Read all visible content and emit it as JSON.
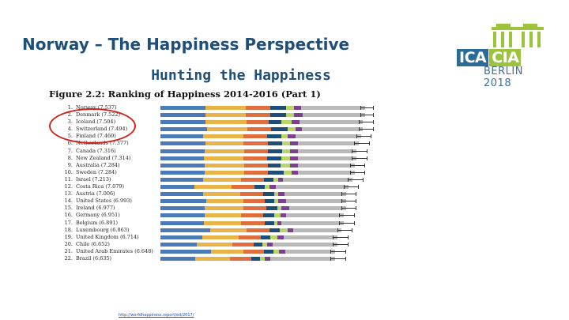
{
  "slide": {
    "title": "Norway – The Happiness Perspective",
    "subtitle": "Hunting the Happiness"
  },
  "logo": {
    "part_a": "ICA",
    "part_b": "CIA",
    "tagline": "BERLIN 2018",
    "colors": {
      "blue": "#2b6b98",
      "green": "#9bc33b"
    }
  },
  "figure": {
    "title": "Figure 2.2: Ranking of Happiness 2014-2016 (Part 1)",
    "segment_colors": [
      "#4a7ab8",
      "#e8b347",
      "#df6d3d",
      "#1e4d7a",
      "#b8d56a",
      "#7d3f8f",
      "#b9b9b9"
    ],
    "rows": [
      {
        "rank": "1.",
        "label": "Norway (7.537)",
        "segments": [
          0.28,
          0.25,
          0.15,
          0.1,
          0.05,
          0.04,
          0.4
        ],
        "ci": [
          0.96,
          1.0
        ]
      },
      {
        "rank": "2.",
        "label": "Denmark (7.522)",
        "segments": [
          0.28,
          0.25,
          0.15,
          0.1,
          0.05,
          0.05,
          0.39
        ],
        "ci": [
          0.96,
          1.0
        ]
      },
      {
        "rank": "3.",
        "label": "Iceland (7.504)",
        "segments": [
          0.28,
          0.26,
          0.14,
          0.08,
          0.06,
          0.05,
          0.4
        ],
        "ci": [
          0.95,
          1.0
        ]
      },
      {
        "rank": "4.",
        "label": "Switzerland (7.494)",
        "segments": [
          0.29,
          0.25,
          0.15,
          0.1,
          0.05,
          0.04,
          0.38
        ],
        "ci": [
          0.95,
          1.0
        ]
      },
      {
        "rank": "5.",
        "label": "Finland (7.469)",
        "segments": [
          0.27,
          0.25,
          0.15,
          0.09,
          0.04,
          0.05,
          0.41
        ],
        "ci": [
          0.94,
          0.99
        ]
      },
      {
        "rank": "6.",
        "label": "Netherlands (7.377)",
        "segments": [
          0.28,
          0.24,
          0.15,
          0.09,
          0.05,
          0.05,
          0.38
        ],
        "ci": [
          0.93,
          0.98
        ]
      },
      {
        "rank": "7.",
        "label": "Canada (7.316)",
        "segments": [
          0.28,
          0.25,
          0.15,
          0.09,
          0.05,
          0.05,
          0.37
        ],
        "ci": [
          0.92,
          0.97
        ]
      },
      {
        "rank": "8.",
        "label": "New Zealand (7.314)",
        "segments": [
          0.27,
          0.25,
          0.15,
          0.09,
          0.05,
          0.05,
          0.37
        ],
        "ci": [
          0.92,
          0.97
        ]
      },
      {
        "rank": "9.",
        "label": "Australia (7.284)",
        "segments": [
          0.28,
          0.25,
          0.15,
          0.08,
          0.06,
          0.05,
          0.36
        ],
        "ci": [
          0.91,
          0.96
        ]
      },
      {
        "rank": "10.",
        "label": "Sweden (7.284)",
        "segments": [
          0.28,
          0.25,
          0.15,
          0.1,
          0.05,
          0.04,
          0.36
        ],
        "ci": [
          0.91,
          0.96
        ]
      },
      {
        "rank": "11.",
        "label": "Israel (7.213)",
        "segments": [
          0.27,
          0.24,
          0.15,
          0.06,
          0.03,
          0.03,
          0.44
        ],
        "ci": [
          0.9,
          0.95
        ]
      },
      {
        "rank": "12.",
        "label": "Costa Rica (7.079)",
        "segments": [
          0.22,
          0.24,
          0.15,
          0.07,
          0.03,
          0.04,
          0.47
        ],
        "ci": [
          0.88,
          0.93
        ]
      },
      {
        "rank": "13.",
        "label": "Austria (7.006)",
        "segments": [
          0.28,
          0.24,
          0.15,
          0.07,
          0.03,
          0.04,
          0.4
        ],
        "ci": [
          0.87,
          0.92
        ]
      },
      {
        "rank": "14.",
        "label": "United States (6.993)",
        "segments": [
          0.3,
          0.24,
          0.14,
          0.06,
          0.03,
          0.05,
          0.39
        ],
        "ci": [
          0.87,
          0.92
        ]
      },
      {
        "rank": "15.",
        "label": "Ireland (6.977)",
        "segments": [
          0.29,
          0.25,
          0.15,
          0.07,
          0.03,
          0.05,
          0.37
        ],
        "ci": [
          0.87,
          0.92
        ]
      },
      {
        "rank": "16.",
        "label": "Germany (6.951)",
        "segments": [
          0.29,
          0.24,
          0.15,
          0.07,
          0.04,
          0.04,
          0.38
        ],
        "ci": [
          0.86,
          0.91
        ]
      },
      {
        "rank": "17.",
        "label": "Belgium (6.891)",
        "segments": [
          0.28,
          0.24,
          0.15,
          0.06,
          0.02,
          0.03,
          0.4
        ],
        "ci": [
          0.86,
          0.91
        ]
      },
      {
        "rank": "18.",
        "label": "Luxembourg (6.863)",
        "segments": [
          0.33,
          0.24,
          0.15,
          0.07,
          0.05,
          0.04,
          0.32
        ],
        "ci": [
          0.85,
          0.9
        ]
      },
      {
        "rank": "19.",
        "label": "United Kingdom (6.714)",
        "segments": [
          0.28,
          0.24,
          0.15,
          0.06,
          0.05,
          0.04,
          0.36
        ],
        "ci": [
          0.83,
          0.88
        ]
      },
      {
        "rank": "20.",
        "label": "Chile (6.652)",
        "segments": [
          0.24,
          0.24,
          0.14,
          0.06,
          0.03,
          0.04,
          0.43
        ],
        "ci": [
          0.83,
          0.88
        ]
      },
      {
        "rank": "21.",
        "label": "United Arab Emirates (6.648)",
        "segments": [
          0.34,
          0.22,
          0.14,
          0.06,
          0.04,
          0.04,
          0.34
        ],
        "ci": [
          0.82,
          0.87
        ]
      },
      {
        "rank": "22.",
        "label": "Brazil (6.635)",
        "segments": [
          0.23,
          0.23,
          0.14,
          0.06,
          0.03,
          0.04,
          0.43
        ],
        "ci": [
          0.82,
          0.87
        ]
      }
    ]
  },
  "source": {
    "link_text": "http://worldhappiness.report/ed/2017/"
  }
}
